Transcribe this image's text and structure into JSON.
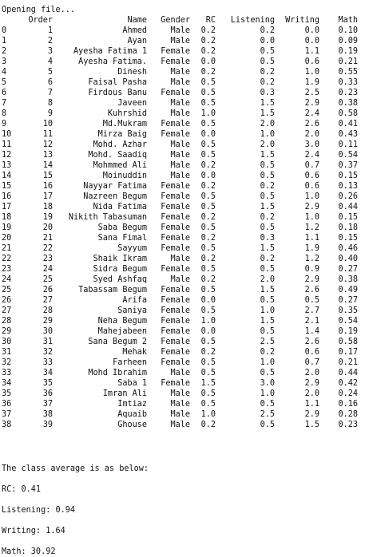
{
  "console": {
    "opening_message": "Opening file...",
    "columns": [
      "Order",
      "Name",
      "Gender",
      "RC",
      "Listening",
      "Writing",
      "Math"
    ],
    "rows": [
      [
        "0",
        "1",
        "Ahmed",
        "Male",
        "0.2",
        "0.2",
        "0.0",
        "0.10"
      ],
      [
        "1",
        "2",
        "Ayan",
        "Male",
        "0.2",
        "0.0",
        "0.0",
        "0.09"
      ],
      [
        "2",
        "3",
        "Ayesha Fatima 1",
        "Female",
        "0.2",
        "0.5",
        "1.1",
        "0.19"
      ],
      [
        "3",
        "4",
        "Ayesha Fatima.",
        "Female",
        "0.0",
        "0.5",
        "0.6",
        "0.21"
      ],
      [
        "4",
        "5",
        "Dinesh",
        "Male",
        "0.2",
        "0.2",
        "1.0",
        "0.55"
      ],
      [
        "5",
        "6",
        "Faisal Pasha",
        "Male",
        "0.5",
        "0.2",
        "1.9",
        "0.33"
      ],
      [
        "6",
        "7",
        "Firdous Banu",
        "Female",
        "0.5",
        "0.3",
        "2.5",
        "0.23"
      ],
      [
        "7",
        "8",
        "Javeen",
        "Male",
        "0.5",
        "1.5",
        "2.9",
        "0.38"
      ],
      [
        "8",
        "9",
        "Kuhrshid",
        "Male",
        "1.0",
        "1.5",
        "2.4",
        "0.58"
      ],
      [
        "9",
        "10",
        "Md.Mukram",
        "Female",
        "0.5",
        "2.0",
        "2.6",
        "0.41"
      ],
      [
        "10",
        "11",
        "Mirza Baig",
        "Female",
        "0.0",
        "1.0",
        "2.0",
        "0.43"
      ],
      [
        "11",
        "12",
        "Mohd. Azhar",
        "Male",
        "0.5",
        "2.0",
        "3.0",
        "0.11"
      ],
      [
        "12",
        "13",
        "Mohd. Saadiq",
        "Male",
        "0.5",
        "1.5",
        "2.4",
        "0.54"
      ],
      [
        "13",
        "14",
        "Mohmmed Ali",
        "Male",
        "0.2",
        "0.5",
        "0.7",
        "0.37"
      ],
      [
        "14",
        "15",
        "Moinuddin",
        "Male",
        "0.0",
        "0.5",
        "0.6",
        "0.15"
      ],
      [
        "15",
        "16",
        "Nayyar Fatima",
        "Female",
        "0.2",
        "0.2",
        "0.6",
        "0.13"
      ],
      [
        "16",
        "17",
        "Nazreen Begum",
        "Female",
        "0.5",
        "0.5",
        "1.0",
        "0.26"
      ],
      [
        "17",
        "18",
        "Nida Fatima",
        "Female",
        "0.5",
        "1.5",
        "2.9",
        "0.44"
      ],
      [
        "18",
        "19",
        "Nikith Tabasuman",
        "Female",
        "0.2",
        "0.2",
        "1.0",
        "0.15"
      ],
      [
        "19",
        "20",
        "Saba Begum",
        "Female",
        "0.5",
        "0.5",
        "1.2",
        "0.18"
      ],
      [
        "20",
        "21",
        "Sana Fimal",
        "Female",
        "0.2",
        "0.3",
        "1.1",
        "0.15"
      ],
      [
        "21",
        "22",
        "Sayyum",
        "Female",
        "0.5",
        "1.5",
        "1.9",
        "0.46"
      ],
      [
        "22",
        "23",
        "Shaik Ikram",
        "Male",
        "0.2",
        "0.2",
        "1.2",
        "0.40"
      ],
      [
        "23",
        "24",
        "Sidra Begum",
        "Female",
        "0.5",
        "0.5",
        "0.9",
        "0.27"
      ],
      [
        "24",
        "25",
        "Syed Ashfaq",
        "Male",
        "0.2",
        "2.0",
        "2.9",
        "0.38"
      ],
      [
        "25",
        "26",
        "Tabassam Begum",
        "Female",
        "0.5",
        "1.5",
        "2.6",
        "0.49"
      ],
      [
        "26",
        "27",
        "Arifa",
        "Female",
        "0.0",
        "0.5",
        "0.5",
        "0.27"
      ],
      [
        "27",
        "28",
        "Saniya",
        "Female",
        "0.5",
        "1.0",
        "2.7",
        "0.35"
      ],
      [
        "28",
        "29",
        "Neha Begum",
        "Female",
        "1.0",
        "1.5",
        "2.1",
        "0.54"
      ],
      [
        "29",
        "30",
        "Mahejabeen",
        "Female",
        "0.0",
        "0.5",
        "1.4",
        "0.19"
      ],
      [
        "30",
        "31",
        "Sana Begum 2",
        "Female",
        "0.5",
        "2.5",
        "2.6",
        "0.58"
      ],
      [
        "31",
        "32",
        "Mehak",
        "Female",
        "0.2",
        "0.2",
        "0.6",
        "0.17"
      ],
      [
        "32",
        "33",
        "Farheen",
        "Female",
        "0.5",
        "1.0",
        "0.7",
        "0.21"
      ],
      [
        "33",
        "34",
        "Mohd Ibrahim",
        "Male",
        "0.5",
        "0.5",
        "2.0",
        "0.44"
      ],
      [
        "34",
        "35",
        "Saba 1",
        "Female",
        "1.5",
        "3.0",
        "2.9",
        "0.42"
      ],
      [
        "35",
        "36",
        "Imran Ali",
        "Male",
        "0.5",
        "1.0",
        "2.0",
        "0.24"
      ],
      [
        "36",
        "37",
        "Imtiaz",
        "Male",
        "0.5",
        "0.5",
        "1.1",
        "0.16"
      ],
      [
        "37",
        "38",
        "Aquaib",
        "Male",
        "1.0",
        "2.5",
        "2.9",
        "0.28"
      ],
      [
        "38",
        "39",
        "Ghouse",
        "Male",
        "0.2",
        "0.5",
        "1.5",
        "0.23"
      ]
    ],
    "average_heading": "The class average is as below:",
    "averages": [
      {
        "text": "RC: 0.41"
      },
      {
        "text": "Listening: 0.94"
      },
      {
        "text": "Writing: 1.64"
      },
      {
        "text": "Math: 30.92"
      }
    ]
  }
}
